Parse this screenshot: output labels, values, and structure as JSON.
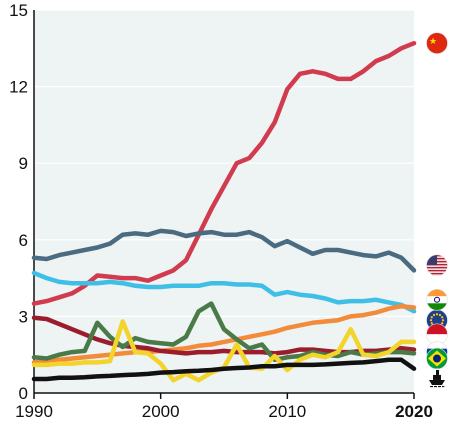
{
  "chart_data": {
    "type": "line",
    "title": "",
    "xlabel": "",
    "ylabel": "",
    "xlim": [
      1990,
      2020
    ],
    "ylim": [
      0,
      15
    ],
    "x_ticks": [
      {
        "value": 1990,
        "label": "1990",
        "bold": false
      },
      {
        "value": 2000,
        "label": "2000",
        "bold": false
      },
      {
        "value": 2010,
        "label": "2010",
        "bold": false
      },
      {
        "value": 2020,
        "label": "2020",
        "bold": true
      }
    ],
    "y_ticks": [
      {
        "value": 0,
        "label": "0"
      },
      {
        "value": 3,
        "label": "3"
      },
      {
        "value": 6,
        "label": "6"
      },
      {
        "value": 9,
        "label": "9"
      },
      {
        "value": 12,
        "label": "12"
      },
      {
        "value": 15,
        "label": "15"
      }
    ],
    "grid": "horizontal",
    "background": "#eef3f4",
    "x": [
      1990,
      1991,
      1992,
      1993,
      1994,
      1995,
      1996,
      1997,
      1998,
      1999,
      2000,
      2001,
      2002,
      2003,
      2004,
      2005,
      2006,
      2007,
      2008,
      2009,
      2010,
      2011,
      2012,
      2013,
      2014,
      2015,
      2016,
      2017,
      2018,
      2019,
      2020
    ],
    "series": [
      {
        "icon": "china-flag-icon",
        "color": "#d13b4e",
        "values": [
          3.5,
          3.6,
          3.75,
          3.9,
          4.2,
          4.6,
          4.55,
          4.5,
          4.5,
          4.4,
          4.6,
          4.8,
          5.2,
          6.2,
          7.2,
          8.1,
          9.0,
          9.2,
          9.8,
          10.6,
          11.9,
          12.5,
          12.6,
          12.5,
          12.3,
          12.3,
          12.6,
          13.0,
          13.2,
          13.5,
          13.7
        ],
        "icon_value": 13.7
      },
      {
        "icon": "usa-flag-icon",
        "color": "#4b6b80",
        "values": [
          5.3,
          5.25,
          5.4,
          5.5,
          5.6,
          5.7,
          5.85,
          6.2,
          6.25,
          6.2,
          6.35,
          6.3,
          6.15,
          6.25,
          6.3,
          6.2,
          6.2,
          6.3,
          6.1,
          5.75,
          5.95,
          5.7,
          5.45,
          5.6,
          5.6,
          5.5,
          5.4,
          5.35,
          5.5,
          5.3,
          4.8
        ],
        "icon_value": 5.0
      },
      {
        "icon": "eu-flag-icon",
        "color": "#3fbfe6",
        "values": [
          4.7,
          4.5,
          4.35,
          4.3,
          4.3,
          4.3,
          4.35,
          4.3,
          4.2,
          4.15,
          4.15,
          4.2,
          4.2,
          4.2,
          4.3,
          4.3,
          4.25,
          4.25,
          4.2,
          3.85,
          3.95,
          3.85,
          3.8,
          3.7,
          3.55,
          3.6,
          3.6,
          3.65,
          3.55,
          3.45,
          3.2
        ],
        "icon_value": 2.85
      },
      {
        "icon": "india-flag-icon",
        "color": "#f28c3a",
        "values": [
          1.2,
          1.25,
          1.3,
          1.35,
          1.4,
          1.45,
          1.5,
          1.55,
          1.6,
          1.6,
          1.65,
          1.7,
          1.75,
          1.85,
          1.9,
          2.0,
          2.1,
          2.2,
          2.3,
          2.4,
          2.55,
          2.65,
          2.75,
          2.8,
          2.85,
          3.0,
          3.05,
          3.15,
          3.3,
          3.4,
          3.35
        ],
        "icon_value": 3.65
      },
      {
        "icon": "indonesia-flag-icon",
        "color": "#9b1c2c",
        "values": [
          2.95,
          2.9,
          2.7,
          2.5,
          2.3,
          2.1,
          1.95,
          1.85,
          1.8,
          1.75,
          1.65,
          1.6,
          1.55,
          1.6,
          1.6,
          1.65,
          1.6,
          1.6,
          1.6,
          1.55,
          1.6,
          1.7,
          1.7,
          1.65,
          1.6,
          1.6,
          1.65,
          1.65,
          1.7,
          1.75,
          1.7
        ],
        "icon_value": 2.3
      },
      {
        "icon": "russia-flag-icon",
        "color": "#4a7a48",
        "values": [
          1.4,
          1.35,
          1.5,
          1.6,
          1.65,
          2.75,
          2.2,
          1.8,
          2.15,
          2.0,
          1.95,
          1.9,
          2.2,
          3.2,
          3.5,
          2.5,
          2.1,
          1.75,
          1.9,
          1.3,
          1.4,
          1.45,
          1.6,
          1.5,
          1.45,
          1.6,
          1.5,
          1.55,
          1.6,
          1.6,
          1.55
        ],
        "icon_value": 1.6
      },
      {
        "icon": "brazil-flag-icon",
        "color": "#f2d42b",
        "values": [
          1.1,
          1.1,
          1.15,
          1.15,
          1.2,
          1.2,
          1.25,
          2.8,
          1.6,
          1.55,
          1.15,
          0.5,
          0.75,
          0.5,
          0.8,
          1.0,
          1.9,
          1.0,
          0.95,
          1.45,
          0.9,
          1.3,
          1.5,
          1.4,
          1.6,
          2.5,
          1.5,
          1.45,
          1.6,
          2.0,
          2.0
        ],
        "icon_value": 1.35
      },
      {
        "icon": "ship-icon",
        "color": "#111111",
        "values": [
          0.55,
          0.55,
          0.6,
          0.6,
          0.62,
          0.65,
          0.67,
          0.7,
          0.72,
          0.75,
          0.8,
          0.82,
          0.85,
          0.87,
          0.9,
          0.95,
          0.98,
          1.0,
          1.05,
          1.05,
          1.1,
          1.1,
          1.1,
          1.12,
          1.15,
          1.18,
          1.2,
          1.25,
          1.3,
          1.3,
          0.95
        ],
        "icon_value": 0.55
      }
    ]
  }
}
